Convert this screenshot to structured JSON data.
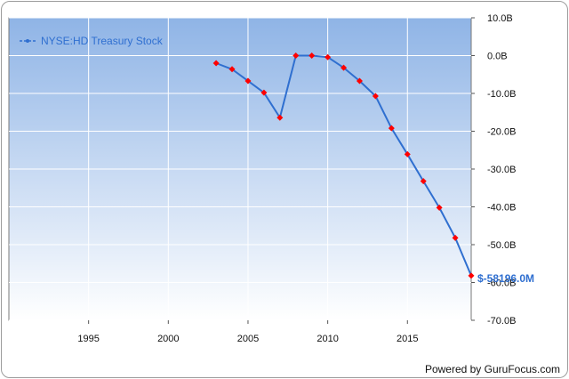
{
  "chart_data": {
    "type": "line",
    "series": [
      {
        "name": "NYSE:HD Treasury Stock",
        "color": "#2f6fd0",
        "marker_color": "#ff0000",
        "x": [
          2003,
          2004,
          2005,
          2006,
          2007,
          2008,
          2009,
          2010,
          2011,
          2012,
          2013,
          2014,
          2015,
          2016,
          2017,
          2018,
          2019
        ],
        "y": [
          -2.0,
          -3.6,
          -6.7,
          -9.8,
          -16.4,
          0.0,
          0.0,
          -0.4,
          -3.2,
          -6.7,
          -10.7,
          -19.2,
          -26.1,
          -33.2,
          -40.2,
          -48.2,
          -58.2
        ]
      }
    ],
    "xlim": [
      1990,
      2019
    ],
    "ylim": [
      -70,
      10
    ],
    "x_ticks": [
      1995,
      2000,
      2005,
      2010,
      2015
    ],
    "y_ticks": [
      {
        "value": 10,
        "label": "10.0B"
      },
      {
        "value": 0,
        "label": "0.0B"
      },
      {
        "value": -10,
        "label": "-10.0B"
      },
      {
        "value": -20,
        "label": "-20.0B"
      },
      {
        "value": -30,
        "label": "-30.0B"
      },
      {
        "value": -40,
        "label": "-40.0B"
      },
      {
        "value": -50,
        "label": "-50.0B"
      },
      {
        "value": -60,
        "label": "-60.0B"
      },
      {
        "value": -70,
        "label": "-70.0B"
      }
    ],
    "last_value_label": "$-58196.0M",
    "legend_position": "top-left",
    "grid": true,
    "background_gradient": [
      "#8fb4e6",
      "#ffffff"
    ]
  },
  "footer": {
    "powered_by": "Powered by GuruFocus.com"
  }
}
